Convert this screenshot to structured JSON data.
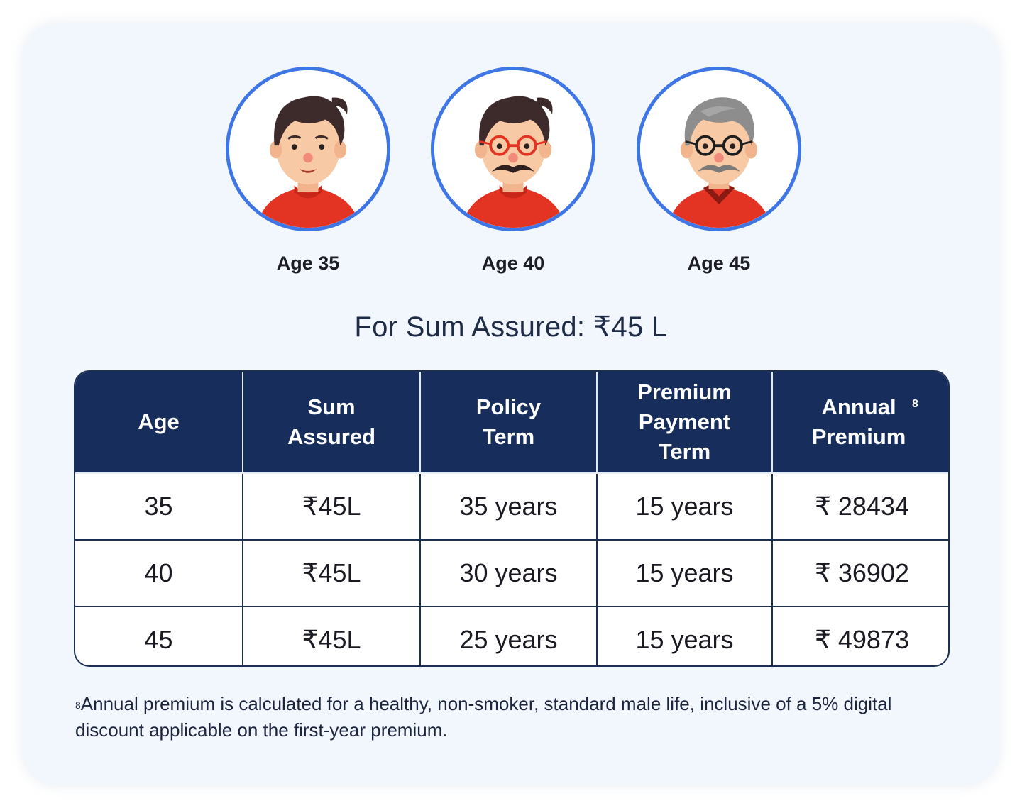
{
  "personas": [
    {
      "label": "Age 35",
      "avatar": "young-man-avatar"
    },
    {
      "label": "Age 40",
      "avatar": "middle-aged-man-glasses-avatar"
    },
    {
      "label": "Age 45",
      "avatar": "older-man-grey-hair-avatar"
    }
  ],
  "headline": "For Sum Assured: ₹45 L",
  "table": {
    "headers": {
      "age": "Age",
      "sum_assured": "Sum Assured",
      "policy_term": "Policy Term",
      "premium_payment_term": "Premium Payment Term",
      "annual_premium": "Annual Premium",
      "annual_premium_marker": "8"
    },
    "rows": [
      {
        "age": "35",
        "sum_assured": "₹45L",
        "policy_term": "35 years",
        "payment_term": "15 years",
        "annual_premium": "₹ 28434"
      },
      {
        "age": "40",
        "sum_assured": "₹45L",
        "policy_term": "30 years",
        "payment_term": "15 years",
        "annual_premium": "₹ 36902"
      },
      {
        "age": "45",
        "sum_assured": "₹45L",
        "policy_term": "25 years",
        "payment_term": "15 years",
        "annual_premium": "₹ 49873"
      }
    ]
  },
  "footnote": {
    "marker": "8",
    "text": "Annual premium is calculated for a healthy, non-smoker, standard male life, inclusive of a 5% digital discount applicable on the first-year premium."
  },
  "colors": {
    "accent_ring": "#3f76e6",
    "header_bg": "#172e5c",
    "shirt": "#e33323"
  }
}
